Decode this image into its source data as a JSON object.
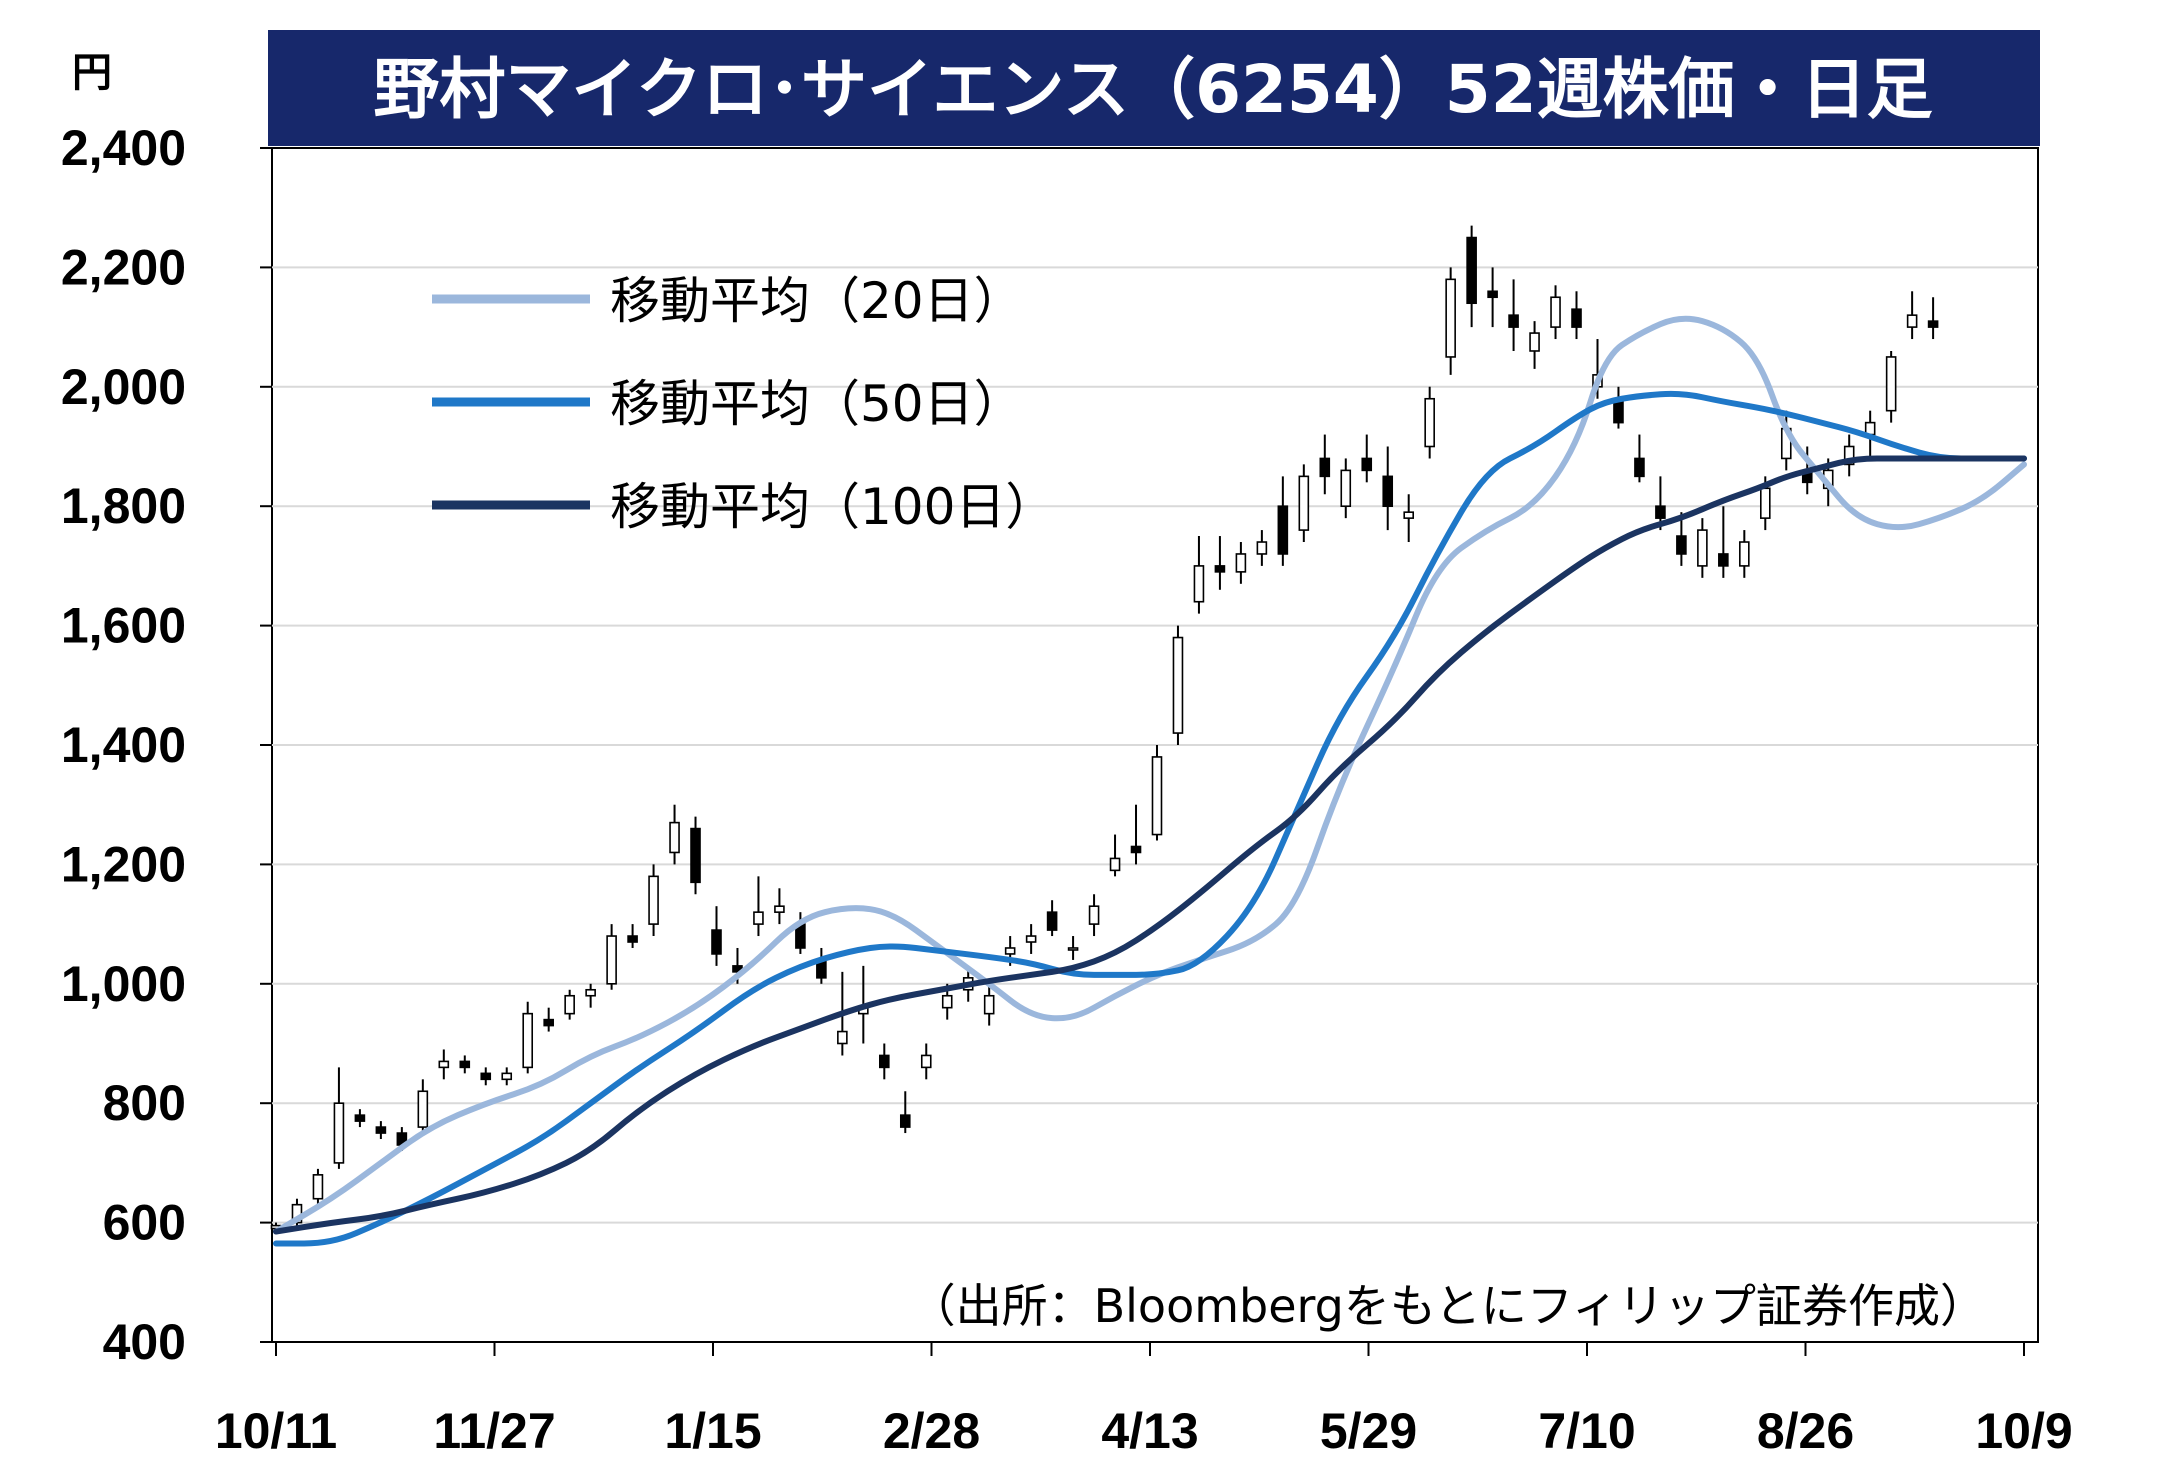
{
  "chart_data": {
    "type": "line",
    "title": "野村マイクロ･サイエンス（6254）52週株価・日足",
    "unit": "円",
    "source_note": "（出所：Bloombergをもとにフィリップ証券作成）",
    "ylim": [
      400,
      2400
    ],
    "yticks": [
      "2,400",
      "2,200",
      "2,000",
      "1,800",
      "1,600",
      "1,400",
      "1,200",
      "1,000",
      "800",
      "600",
      "400"
    ],
    "xticks": [
      "10/11",
      "11/27",
      "1/15",
      "2/28",
      "4/13",
      "5/29",
      "7/10",
      "8/26",
      "10/9"
    ],
    "grid": true,
    "legend_position": "top-left",
    "colors": {
      "title_bg": "#17286b",
      "ma20": "#9bb7dc",
      "ma50": "#1f78c8",
      "ma100": "#1b3461",
      "candle": "#000000"
    },
    "series": [
      {
        "name": "移動平均（20日）",
        "x": [
          0,
          8,
          15,
          22,
          30,
          38,
          45,
          52,
          60,
          68,
          75,
          82,
          88,
          95,
          102,
          108,
          114,
          120,
          126,
          132,
          140,
          146,
          152,
          160,
          166,
          173,
          180,
          186,
          190,
          195,
          201,
          207,
          212,
          216,
          221,
          226,
          232,
          238,
          244,
          250
        ],
        "values": [
          585,
          640,
          700,
          760,
          800,
          830,
          880,
          910,
          960,
          1030,
          1110,
          1130,
          1120,
          1060,
          1000,
          945,
          940,
          980,
          1015,
          1040,
          1070,
          1130,
          1330,
          1530,
          1700,
          1760,
          1800,
          1900,
          2050,
          2090,
          2120,
          2100,
          2050,
          1920,
          1850,
          1780,
          1760,
          1780,
          1810,
          1870
        ]
      },
      {
        "name": "移動平均（50日）",
        "x": [
          0,
          8,
          15,
          22,
          30,
          38,
          45,
          52,
          60,
          68,
          75,
          82,
          88,
          95,
          102,
          108,
          114,
          120,
          126,
          132,
          140,
          146,
          152,
          160,
          166,
          173,
          180,
          186,
          190,
          195,
          201,
          207,
          212,
          216,
          221,
          226,
          232,
          238,
          244,
          250
        ],
        "values": [
          565,
          565,
          600,
          640,
          690,
          740,
          800,
          860,
          920,
          990,
          1030,
          1055,
          1065,
          1055,
          1045,
          1035,
          1015,
          1015,
          1015,
          1030,
          1130,
          1290,
          1450,
          1580,
          1720,
          1860,
          1900,
          1950,
          1975,
          1985,
          1990,
          1975,
          1965,
          1955,
          1940,
          1925,
          1900,
          1880,
          1880,
          1880
        ]
      },
      {
        "name": "移動平均（100日）",
        "x": [
          0,
          8,
          15,
          22,
          30,
          38,
          45,
          52,
          60,
          68,
          75,
          82,
          88,
          95,
          102,
          108,
          114,
          120,
          126,
          132,
          140,
          146,
          152,
          160,
          166,
          173,
          180,
          186,
          190,
          195,
          201,
          207,
          212,
          216,
          221,
          226,
          232,
          238,
          244,
          250
        ],
        "values": [
          585,
          600,
          610,
          630,
          650,
          680,
          720,
          790,
          850,
          895,
          925,
          955,
          975,
          990,
          1005,
          1015,
          1025,
          1050,
          1095,
          1150,
          1230,
          1280,
          1360,
          1440,
          1520,
          1590,
          1650,
          1700,
          1730,
          1760,
          1780,
          1810,
          1830,
          1850,
          1865,
          1880,
          1880,
          1880,
          1880,
          1880
        ]
      }
    ],
    "candles_note": "daily candlesticks: [day_index, open, high, low, close]",
    "candles": [
      [
        0,
        590,
        600,
        585,
        595
      ],
      [
        3,
        600,
        640,
        595,
        630
      ],
      [
        6,
        640,
        690,
        630,
        680
      ],
      [
        9,
        700,
        860,
        690,
        800
      ],
      [
        12,
        780,
        790,
        760,
        770
      ],
      [
        15,
        760,
        770,
        740,
        750
      ],
      [
        18,
        750,
        760,
        720,
        730
      ],
      [
        21,
        760,
        840,
        750,
        820
      ],
      [
        24,
        860,
        890,
        840,
        870
      ],
      [
        27,
        870,
        880,
        850,
        860
      ],
      [
        30,
        850,
        860,
        830,
        840
      ],
      [
        33,
        840,
        860,
        830,
        850
      ],
      [
        36,
        860,
        970,
        850,
        950
      ],
      [
        39,
        940,
        960,
        920,
        930
      ],
      [
        42,
        950,
        990,
        940,
        980
      ],
      [
        45,
        980,
        1000,
        960,
        990
      ],
      [
        48,
        1000,
        1100,
        990,
        1080
      ],
      [
        51,
        1080,
        1100,
        1060,
        1070
      ],
      [
        54,
        1100,
        1200,
        1080,
        1180
      ],
      [
        57,
        1220,
        1300,
        1200,
        1270
      ],
      [
        60,
        1260,
        1280,
        1150,
        1170
      ],
      [
        63,
        1090,
        1130,
        1030,
        1050
      ],
      [
        66,
        1030,
        1060,
        1000,
        1020
      ],
      [
        69,
        1100,
        1180,
        1080,
        1120
      ],
      [
        72,
        1120,
        1160,
        1100,
        1130
      ],
      [
        75,
        1100,
        1120,
        1050,
        1060
      ],
      [
        78,
        1040,
        1060,
        1000,
        1010
      ],
      [
        81,
        900,
        1020,
        880,
        920
      ],
      [
        84,
        950,
        1030,
        900,
        960
      ],
      [
        87,
        880,
        900,
        840,
        860
      ],
      [
        90,
        780,
        820,
        750,
        760
      ],
      [
        93,
        860,
        900,
        840,
        880
      ],
      [
        96,
        960,
        1000,
        940,
        980
      ],
      [
        99,
        990,
        1030,
        970,
        1010
      ],
      [
        102,
        950,
        1000,
        930,
        980
      ],
      [
        105,
        1050,
        1080,
        1030,
        1060
      ],
      [
        108,
        1070,
        1100,
        1050,
        1080
      ],
      [
        111,
        1120,
        1140,
        1080,
        1090
      ],
      [
        114,
        1060,
        1080,
        1040,
        1060
      ],
      [
        117,
        1100,
        1150,
        1080,
        1130
      ],
      [
        120,
        1190,
        1250,
        1180,
        1210
      ],
      [
        123,
        1230,
        1300,
        1200,
        1220
      ],
      [
        126,
        1250,
        1400,
        1240,
        1380
      ],
      [
        129,
        1420,
        1600,
        1400,
        1580
      ],
      [
        132,
        1640,
        1750,
        1620,
        1700
      ],
      [
        135,
        1700,
        1750,
        1660,
        1690
      ],
      [
        138,
        1690,
        1740,
        1670,
        1720
      ],
      [
        141,
        1720,
        1760,
        1700,
        1740
      ],
      [
        144,
        1800,
        1850,
        1700,
        1720
      ],
      [
        147,
        1760,
        1870,
        1740,
        1850
      ],
      [
        150,
        1880,
        1920,
        1820,
        1850
      ],
      [
        153,
        1800,
        1880,
        1780,
        1860
      ],
      [
        156,
        1880,
        1920,
        1840,
        1860
      ],
      [
        159,
        1850,
        1900,
        1760,
        1800
      ],
      [
        162,
        1780,
        1820,
        1740,
        1790
      ],
      [
        165,
        1900,
        2000,
        1880,
        1980
      ],
      [
        168,
        2050,
        2200,
        2020,
        2180
      ],
      [
        171,
        2250,
        2270,
        2100,
        2140
      ],
      [
        174,
        2160,
        2200,
        2100,
        2150
      ],
      [
        177,
        2120,
        2180,
        2060,
        2100
      ],
      [
        180,
        2060,
        2110,
        2030,
        2090
      ],
      [
        183,
        2100,
        2170,
        2080,
        2150
      ],
      [
        186,
        2130,
        2160,
        2080,
        2100
      ],
      [
        189,
        2000,
        2080,
        1980,
        2020
      ],
      [
        192,
        1980,
        2000,
        1930,
        1940
      ],
      [
        195,
        1880,
        1920,
        1840,
        1850
      ],
      [
        198,
        1800,
        1850,
        1760,
        1780
      ],
      [
        201,
        1750,
        1790,
        1700,
        1720
      ],
      [
        204,
        1700,
        1780,
        1680,
        1760
      ],
      [
        207,
        1720,
        1800,
        1680,
        1700
      ],
      [
        210,
        1700,
        1760,
        1680,
        1740
      ],
      [
        213,
        1780,
        1850,
        1760,
        1830
      ],
      [
        216,
        1880,
        1960,
        1860,
        1930
      ],
      [
        219,
        1860,
        1900,
        1820,
        1840
      ],
      [
        222,
        1830,
        1880,
        1800,
        1860
      ],
      [
        225,
        1870,
        1920,
        1850,
        1900
      ],
      [
        228,
        1920,
        1960,
        1880,
        1940
      ],
      [
        231,
        1960,
        2060,
        1940,
        2050
      ],
      [
        234,
        2100,
        2160,
        2080,
        2120
      ],
      [
        237,
        2110,
        2150,
        2080,
        2100
      ]
    ]
  }
}
